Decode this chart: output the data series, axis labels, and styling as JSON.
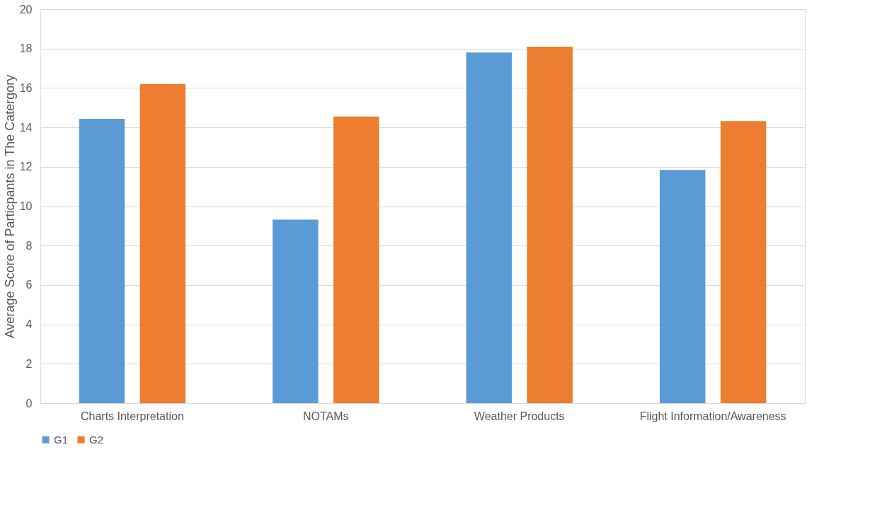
{
  "chart_data": {
    "type": "bar",
    "ylabel": "Average Score of Particpants in The Catergory",
    "categories": [
      "Charts Interpretation",
      "NOTAMs",
      "Weather Products",
      "Flight Information/Awareness"
    ],
    "series": [
      {
        "name": "G1",
        "color": "#5b9bd5",
        "values": [
          14.43,
          9.32,
          17.8,
          11.84
        ]
      },
      {
        "name": "G2",
        "color": "#ed7d31",
        "values": [
          16.2,
          14.55,
          18.1,
          14.32
        ]
      }
    ],
    "ylim": [
      0,
      20
    ],
    "yticks": [
      0,
      2,
      4,
      6,
      8,
      10,
      12,
      14,
      16,
      18,
      20
    ],
    "grid": "y",
    "legend": "bottom"
  }
}
